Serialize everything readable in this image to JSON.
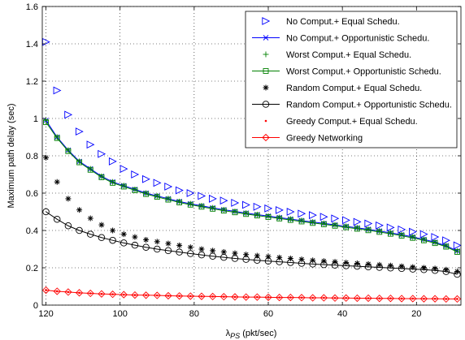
{
  "chart_data": {
    "type": "line",
    "title": "",
    "xlabel_main": "λ",
    "xlabel_sub": "PS",
    "xlabel_unit": " (pkt/sec)",
    "ylabel": "Maximum path delay (sec)",
    "xlim": [
      121,
      8
    ],
    "xreversed": true,
    "ylim": [
      0,
      1.6
    ],
    "xticks": [
      120,
      100,
      80,
      60,
      40,
      20
    ],
    "yticks": [
      0,
      0.2,
      0.4,
      0.6,
      0.8,
      1,
      1.2,
      1.4,
      1.6
    ],
    "xticklabels": [
      "120",
      "100",
      "80",
      "60",
      "40",
      "20"
    ],
    "yticklabels": [
      "0",
      "0.2",
      "0.4",
      "0.6",
      "0.8",
      "1",
      "1.2",
      "1.4",
      "1.6"
    ],
    "grid": true,
    "legend_position": "top-right",
    "x": [
      120,
      117,
      114,
      111,
      108,
      105,
      102,
      99,
      96,
      93,
      90,
      87,
      84,
      81,
      78,
      75,
      72,
      69,
      66,
      63,
      60,
      57,
      54,
      51,
      48,
      45,
      42,
      39,
      36,
      33,
      30,
      27,
      24,
      21,
      18,
      15,
      12,
      9
    ],
    "series": [
      {
        "name": "No Comput.+ Equal Schedu.",
        "color": "#0000ff",
        "marker": "triangle-right",
        "line": false,
        "values": [
          1.41,
          1.15,
          1.02,
          0.93,
          0.86,
          0.81,
          0.77,
          0.73,
          0.7,
          0.675,
          0.655,
          0.635,
          0.615,
          0.6,
          0.585,
          0.57,
          0.56,
          0.548,
          0.537,
          0.527,
          0.518,
          0.509,
          0.5,
          0.49,
          0.482,
          0.473,
          0.464,
          0.455,
          0.446,
          0.437,
          0.427,
          0.416,
          0.405,
          0.393,
          0.38,
          0.365,
          0.347,
          0.32
        ]
      },
      {
        "name": "No Comput.+ Opportunistic Schedu.",
        "color": "#0000ff",
        "marker": "x",
        "line": true,
        "values": [
          0.99,
          0.9,
          0.83,
          0.77,
          0.73,
          0.69,
          0.66,
          0.64,
          0.62,
          0.6,
          0.585,
          0.57,
          0.555,
          0.543,
          0.532,
          0.521,
          0.511,
          0.502,
          0.493,
          0.485,
          0.477,
          0.469,
          0.461,
          0.453,
          0.445,
          0.438,
          0.43,
          0.422,
          0.414,
          0.406,
          0.397,
          0.387,
          0.377,
          0.365,
          0.352,
          0.337,
          0.318,
          0.29
        ]
      },
      {
        "name": "Worst Comput.+ Equal Schedu.",
        "color": "#008000",
        "marker": "plus",
        "line": false,
        "values": [
          0.99,
          0.9,
          0.83,
          0.77,
          0.73,
          0.69,
          0.66,
          0.64,
          0.62,
          0.6,
          0.585,
          0.57,
          0.555,
          0.543,
          0.532,
          0.521,
          0.511,
          0.502,
          0.493,
          0.485,
          0.477,
          0.469,
          0.461,
          0.453,
          0.445,
          0.438,
          0.43,
          0.422,
          0.414,
          0.406,
          0.397,
          0.387,
          0.377,
          0.365,
          0.352,
          0.337,
          0.318,
          0.29
        ]
      },
      {
        "name": "Worst Comput.+ Opportunistic Schedu.",
        "color": "#008000",
        "marker": "square",
        "line": true,
        "values": [
          0.98,
          0.895,
          0.825,
          0.765,
          0.725,
          0.685,
          0.655,
          0.635,
          0.615,
          0.595,
          0.58,
          0.565,
          0.55,
          0.538,
          0.527,
          0.516,
          0.506,
          0.497,
          0.488,
          0.48,
          0.472,
          0.464,
          0.456,
          0.448,
          0.44,
          0.433,
          0.425,
          0.417,
          0.409,
          0.401,
          0.392,
          0.382,
          0.372,
          0.36,
          0.347,
          0.332,
          0.313,
          0.285
        ]
      },
      {
        "name": "Random Comput.+ Equal Schedu.",
        "color": "#000000",
        "marker": "asterisk",
        "line": false,
        "values": [
          0.79,
          0.66,
          0.57,
          0.51,
          0.465,
          0.43,
          0.4,
          0.38,
          0.365,
          0.35,
          0.34,
          0.33,
          0.32,
          0.31,
          0.3,
          0.292,
          0.285,
          0.278,
          0.271,
          0.265,
          0.26,
          0.255,
          0.25,
          0.245,
          0.24,
          0.236,
          0.232,
          0.228,
          0.224,
          0.22,
          0.216,
          0.212,
          0.208,
          0.204,
          0.2,
          0.196,
          0.19,
          0.18
        ]
      },
      {
        "name": "Random Comput.+ Opportunistic Schedu.",
        "color": "#000000",
        "marker": "circle",
        "line": true,
        "values": [
          0.5,
          0.46,
          0.425,
          0.4,
          0.38,
          0.362,
          0.347,
          0.333,
          0.321,
          0.31,
          0.3,
          0.292,
          0.284,
          0.276,
          0.269,
          0.262,
          0.256,
          0.25,
          0.245,
          0.24,
          0.236,
          0.232,
          0.228,
          0.224,
          0.22,
          0.217,
          0.214,
          0.211,
          0.208,
          0.205,
          0.202,
          0.199,
          0.196,
          0.193,
          0.19,
          0.186,
          0.18,
          0.165
        ]
      },
      {
        "name": "Greedy Comput.+ Equal Schedu.",
        "color": "#ff0000",
        "marker": "dot",
        "line": false,
        "values": [
          0.08,
          0.074,
          0.07,
          0.066,
          0.063,
          0.06,
          0.058,
          0.056,
          0.054,
          0.053,
          0.052,
          0.05,
          0.049,
          0.048,
          0.047,
          0.046,
          0.045,
          0.044,
          0.043,
          0.043,
          0.042,
          0.041,
          0.041,
          0.04,
          0.039,
          0.039,
          0.038,
          0.038,
          0.037,
          0.037,
          0.036,
          0.036,
          0.035,
          0.035,
          0.034,
          0.034,
          0.033,
          0.033
        ]
      },
      {
        "name": "Greedy Networking",
        "color": "#ff0000",
        "marker": "diamond",
        "line": true,
        "values": [
          0.08,
          0.074,
          0.07,
          0.066,
          0.063,
          0.06,
          0.058,
          0.056,
          0.054,
          0.053,
          0.052,
          0.05,
          0.049,
          0.048,
          0.047,
          0.046,
          0.045,
          0.044,
          0.043,
          0.043,
          0.042,
          0.041,
          0.041,
          0.04,
          0.039,
          0.039,
          0.038,
          0.038,
          0.037,
          0.037,
          0.036,
          0.036,
          0.035,
          0.035,
          0.034,
          0.034,
          0.033,
          0.033
        ]
      }
    ]
  }
}
